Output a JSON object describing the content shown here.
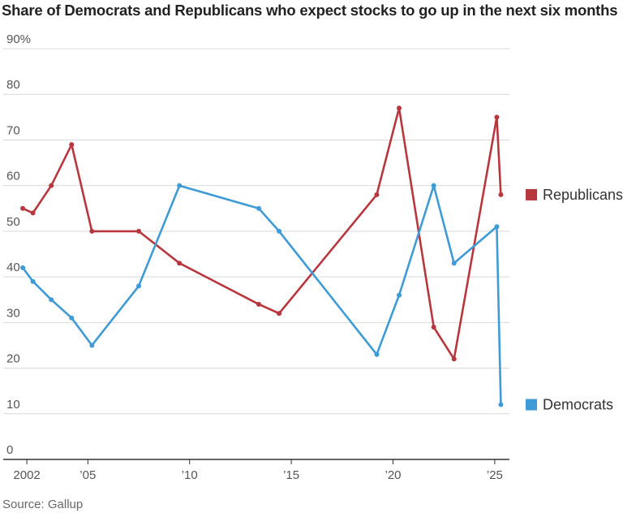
{
  "title": "Share of Democrats and Republicans who expect stocks to go up in the next six months",
  "source": "Source: Gallup",
  "colors": {
    "republicans": "#b8373e",
    "democrats": "#3e9bd6",
    "grid": "#d9d9d9",
    "axis": "#333333"
  },
  "chart_data": {
    "type": "line",
    "title": "Share of Democrats and Republicans who expect stocks to go up in the next six months",
    "xlabel": "",
    "ylabel": "",
    "xlim": [
      2001.0,
      2026.2
    ],
    "ylim": [
      0,
      90
    ],
    "y_ticks": [
      0,
      10,
      20,
      30,
      40,
      50,
      60,
      70,
      80,
      90
    ],
    "y_tick_labels": [
      "0",
      "10",
      "20",
      "30",
      "40",
      "50",
      "60",
      "70",
      "80",
      "90%"
    ],
    "x_ticks": [
      2002,
      2005,
      2010,
      2015,
      2020,
      2025
    ],
    "x_tick_labels": [
      "2002",
      "’05",
      "’10",
      "’15",
      "’20",
      "’25"
    ],
    "grid": true,
    "legend": "direct labels at right end of lines",
    "series": [
      {
        "name": "Republicans",
        "color": "#b8373e",
        "x": [
          2001.8,
          2002.3,
          2003.2,
          2004.2,
          2005.2,
          2007.5,
          2009.5,
          2013.4,
          2014.4,
          2019.2,
          2020.3,
          2022.0,
          2023.0,
          2025.1,
          2025.3
        ],
        "y": [
          55,
          54,
          60,
          69,
          50,
          50,
          43,
          34,
          32,
          58,
          77,
          29,
          22,
          75,
          58
        ]
      },
      {
        "name": "Democrats",
        "color": "#3e9bd6",
        "x": [
          2001.8,
          2002.3,
          2003.2,
          2004.2,
          2005.2,
          2007.5,
          2009.5,
          2013.4,
          2014.4,
          2019.2,
          2020.3,
          2022.0,
          2023.0,
          2025.1,
          2025.3
        ],
        "y": [
          42,
          39,
          35,
          31,
          25,
          38,
          60,
          55,
          50,
          23,
          36,
          60,
          43,
          51,
          12
        ]
      }
    ]
  }
}
